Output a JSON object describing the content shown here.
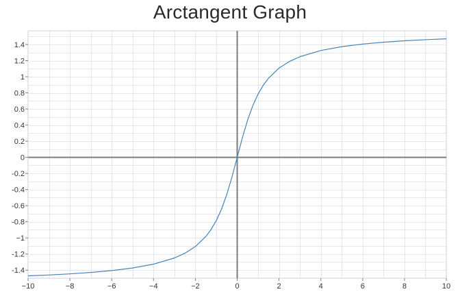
{
  "chart_data": {
    "type": "line",
    "title": "Arctangent Graph",
    "xlabel": "",
    "ylabel": "",
    "xlim": [
      -10,
      10
    ],
    "ylim": [
      -1.5,
      1.57
    ],
    "x_ticks": [
      -10,
      -8,
      -6,
      -4,
      -2,
      0,
      2,
      4,
      6,
      8,
      10
    ],
    "x_tick_labels": [
      "−10",
      "−8",
      "−6",
      "−4",
      "−2",
      "0",
      "2",
      "4",
      "6",
      "8",
      "10"
    ],
    "y_ticks": [
      -1.4,
      -1.2,
      -1,
      -0.8,
      -0.6,
      -0.4,
      -0.2,
      0,
      0.2,
      0.4,
      0.6,
      0.8,
      1,
      1.2,
      1.4
    ],
    "y_tick_labels": [
      "-1.4",
      "-1.2",
      "−1",
      "-0.8",
      "-0.6",
      "-0.4",
      "-0.2",
      "0",
      "0.2",
      "0.4",
      "0.6",
      "0.8",
      "1",
      "1.2",
      "1.4"
    ],
    "grid": true,
    "series": [
      {
        "color": "#4682b4",
        "x": [
          -10,
          -9,
          -8,
          -7,
          -6,
          -5,
          -4,
          -3,
          -2.5,
          -2,
          -1.5,
          -1.25,
          -1,
          -0.75,
          -0.5,
          -0.25,
          0,
          0.25,
          0.5,
          0.75,
          1,
          1.25,
          1.5,
          2,
          2.5,
          3,
          4,
          5,
          6,
          7,
          8,
          9,
          10
        ],
        "y": [
          -1.4711,
          -1.4601,
          -1.4464,
          -1.4289,
          -1.4056,
          -1.3734,
          -1.3258,
          -1.249,
          -1.1903,
          -1.1071,
          -0.9828,
          -0.8961,
          -0.7854,
          -0.6435,
          -0.4636,
          -0.245,
          0,
          0.245,
          0.4636,
          0.6435,
          0.7854,
          0.8961,
          0.9828,
          1.1071,
          1.1903,
          1.249,
          1.3258,
          1.3734,
          1.4056,
          1.4289,
          1.4464,
          1.4601,
          1.4711
        ]
      }
    ],
    "colors": {
      "grid": "#e3e6ef",
      "axis": "#808080",
      "frame": "#d0d0d0"
    }
  }
}
